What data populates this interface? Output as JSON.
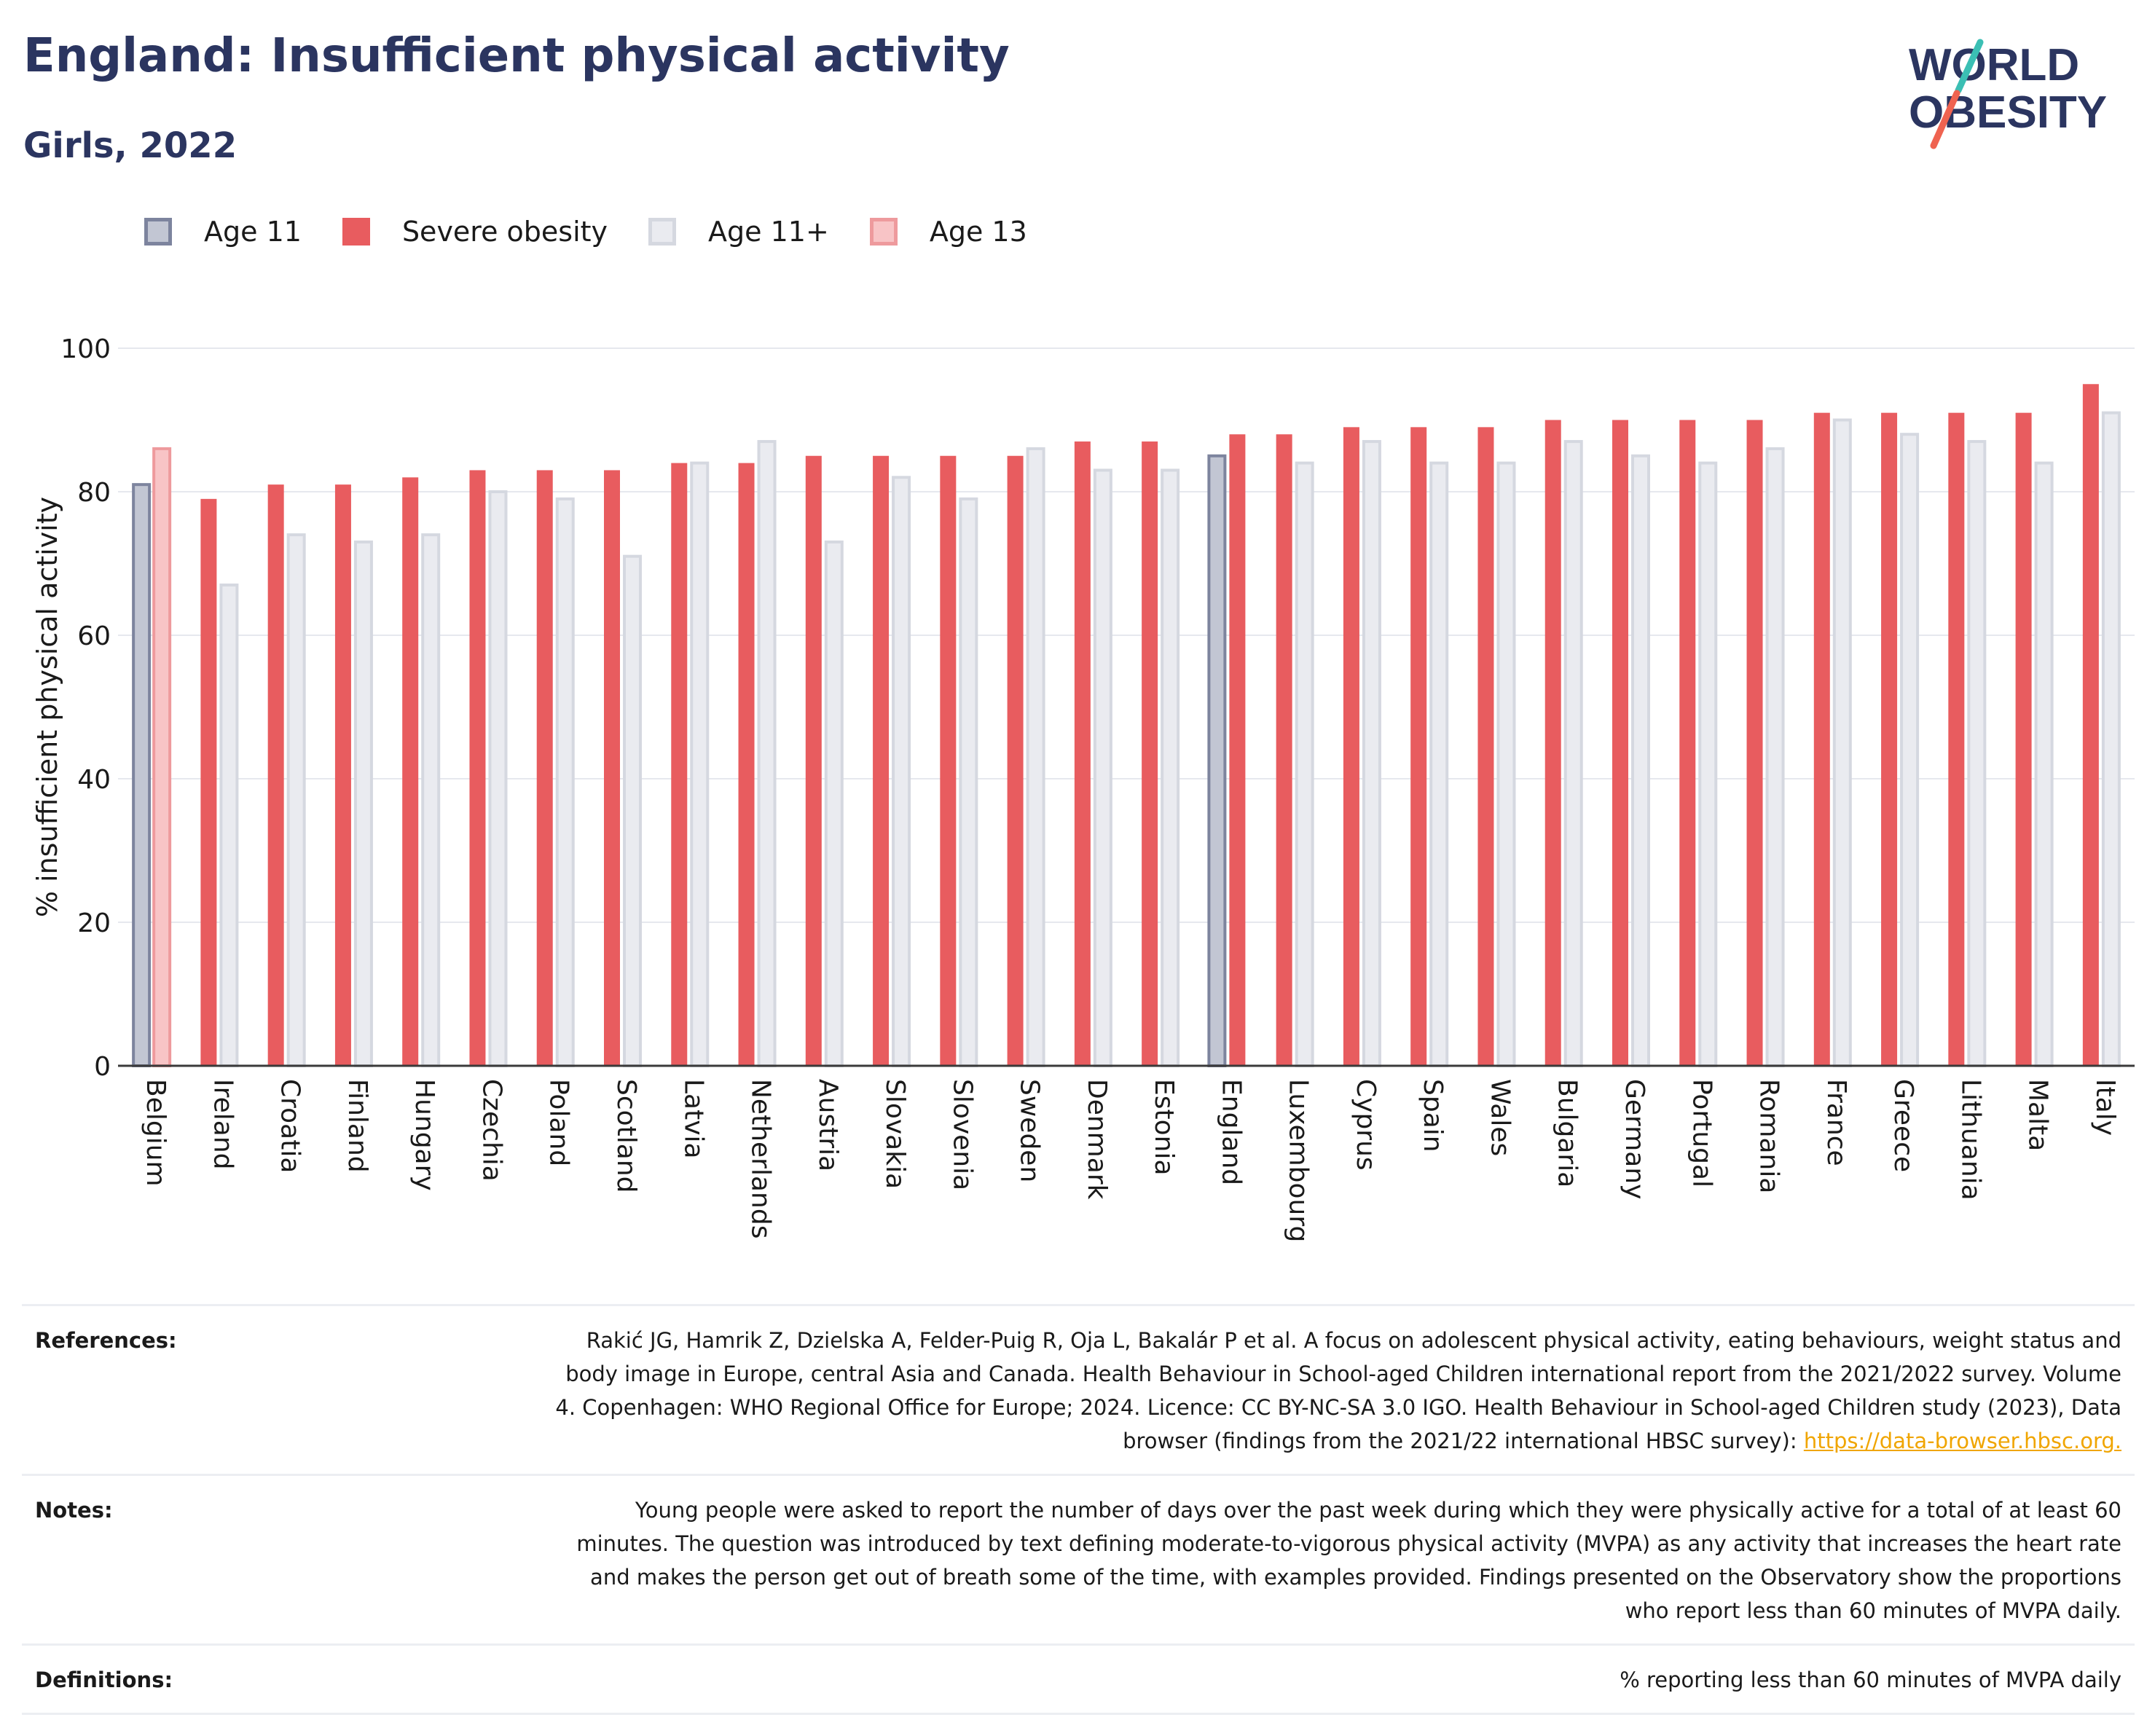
{
  "header": {
    "title": "England: Insufficient physical activity",
    "subtitle": "Girls, 2022"
  },
  "logo": {
    "line1": "WORLD",
    "line2": "OBESITY"
  },
  "colors": {
    "age11": "#c2c6d3",
    "age11_border": "#7d849e",
    "severe_obesity": "#e85c5f",
    "age11plus": "#eaebf0",
    "age11plus_border": "#d5d8e0",
    "age13": "#f8c4c6",
    "age13_border": "#ee9a9d",
    "title": "#2b3560",
    "link": "#f0a500",
    "logo_slash_top": "#3bbfb4",
    "logo_slash_bottom": "#ef6350"
  },
  "legend": [
    {
      "key": "age11",
      "label": "Age 11"
    },
    {
      "key": "severe_obesity",
      "label": "Severe obesity"
    },
    {
      "key": "age11plus",
      "label": "Age 11+"
    },
    {
      "key": "age13",
      "label": "Age 13"
    }
  ],
  "chart_data": {
    "type": "bar",
    "ylabel": "% insufficient physical activity",
    "xlabel": "",
    "ylim": [
      0,
      100
    ],
    "yticks": [
      0,
      20,
      40,
      60,
      80,
      100
    ],
    "grid": true,
    "legend_position": "top-left",
    "categories": [
      "Belgium",
      "Ireland",
      "Croatia",
      "Finland",
      "Hungary",
      "Czechia",
      "Poland",
      "Scotland",
      "Latvia",
      "Netherlands",
      "Austria",
      "Slovakia",
      "Slovenia",
      "Sweden",
      "Denmark",
      "Estonia",
      "England",
      "Luxembourg",
      "Cyprus",
      "Spain",
      "Wales",
      "Bulgaria",
      "Germany",
      "Portugal",
      "Romania",
      "France",
      "Greece",
      "Lithuania",
      "Malta",
      "Italy"
    ],
    "series": [
      {
        "name": "Age 11",
        "key": "age11",
        "values": [
          81,
          null,
          null,
          null,
          null,
          null,
          null,
          null,
          null,
          null,
          null,
          null,
          null,
          null,
          null,
          null,
          85,
          null,
          null,
          null,
          null,
          null,
          null,
          null,
          null,
          null,
          null,
          null,
          null,
          null
        ]
      },
      {
        "name": "Severe obesity",
        "key": "severe_obesity",
        "values": [
          null,
          79,
          81,
          81,
          82,
          83,
          83,
          83,
          84,
          84,
          85,
          85,
          85,
          85,
          87,
          87,
          88,
          88,
          89,
          89,
          89,
          90,
          90,
          90,
          90,
          91,
          91,
          91,
          91,
          95
        ]
      },
      {
        "name": "Age 11+",
        "key": "age11plus",
        "values": [
          null,
          67,
          74,
          73,
          74,
          80,
          79,
          71,
          84,
          87,
          73,
          82,
          79,
          86,
          83,
          83,
          null,
          84,
          87,
          84,
          84,
          87,
          85,
          84,
          86,
          90,
          88,
          87,
          84,
          91
        ]
      },
      {
        "name": "Age 13",
        "key": "age13",
        "values": [
          86,
          null,
          null,
          null,
          null,
          null,
          null,
          null,
          null,
          null,
          null,
          null,
          null,
          null,
          null,
          null,
          null,
          null,
          null,
          null,
          null,
          null,
          null,
          null,
          null,
          null,
          null,
          null,
          null,
          null
        ]
      }
    ]
  },
  "references": {
    "refs_label": "References:",
    "refs_text": "Rakić JG, Hamrik Z, Dzielska A, Felder-Puig R, Oja L, Bakalár P et al. A focus on adolescent physical activity, eating behaviours, weight status and body image in Europe, central Asia and Canada. Health Behaviour in School-aged Children international report from the 2021/2022 survey. Volume 4. Copenhagen: WHO Regional Office for Europe; 2024. Licence: CC BY-NC-SA 3.0 IGO. Health Behaviour in School-aged Children study (2023), Data browser (findings from the 2021/22 international HBSC survey): ",
    "refs_link": "https://data-browser.hbsc.org.",
    "notes_label": "Notes:",
    "notes_text": "Young people were asked to report the number of days over the past week during which they were physically active for a total of at least 60 minutes. The question was introduced by text defining moderate-to-vigorous physical activity (MVPA) as any activity that increases the heart rate and makes the person get out of breath some of the time, with examples provided. Findings presented on the Observatory show the proportions who report less than 60 minutes of MVPA daily.",
    "definitions_label": "Definitions:",
    "definitions_text": "% reporting less than 60 minutes of MVPA daily"
  }
}
